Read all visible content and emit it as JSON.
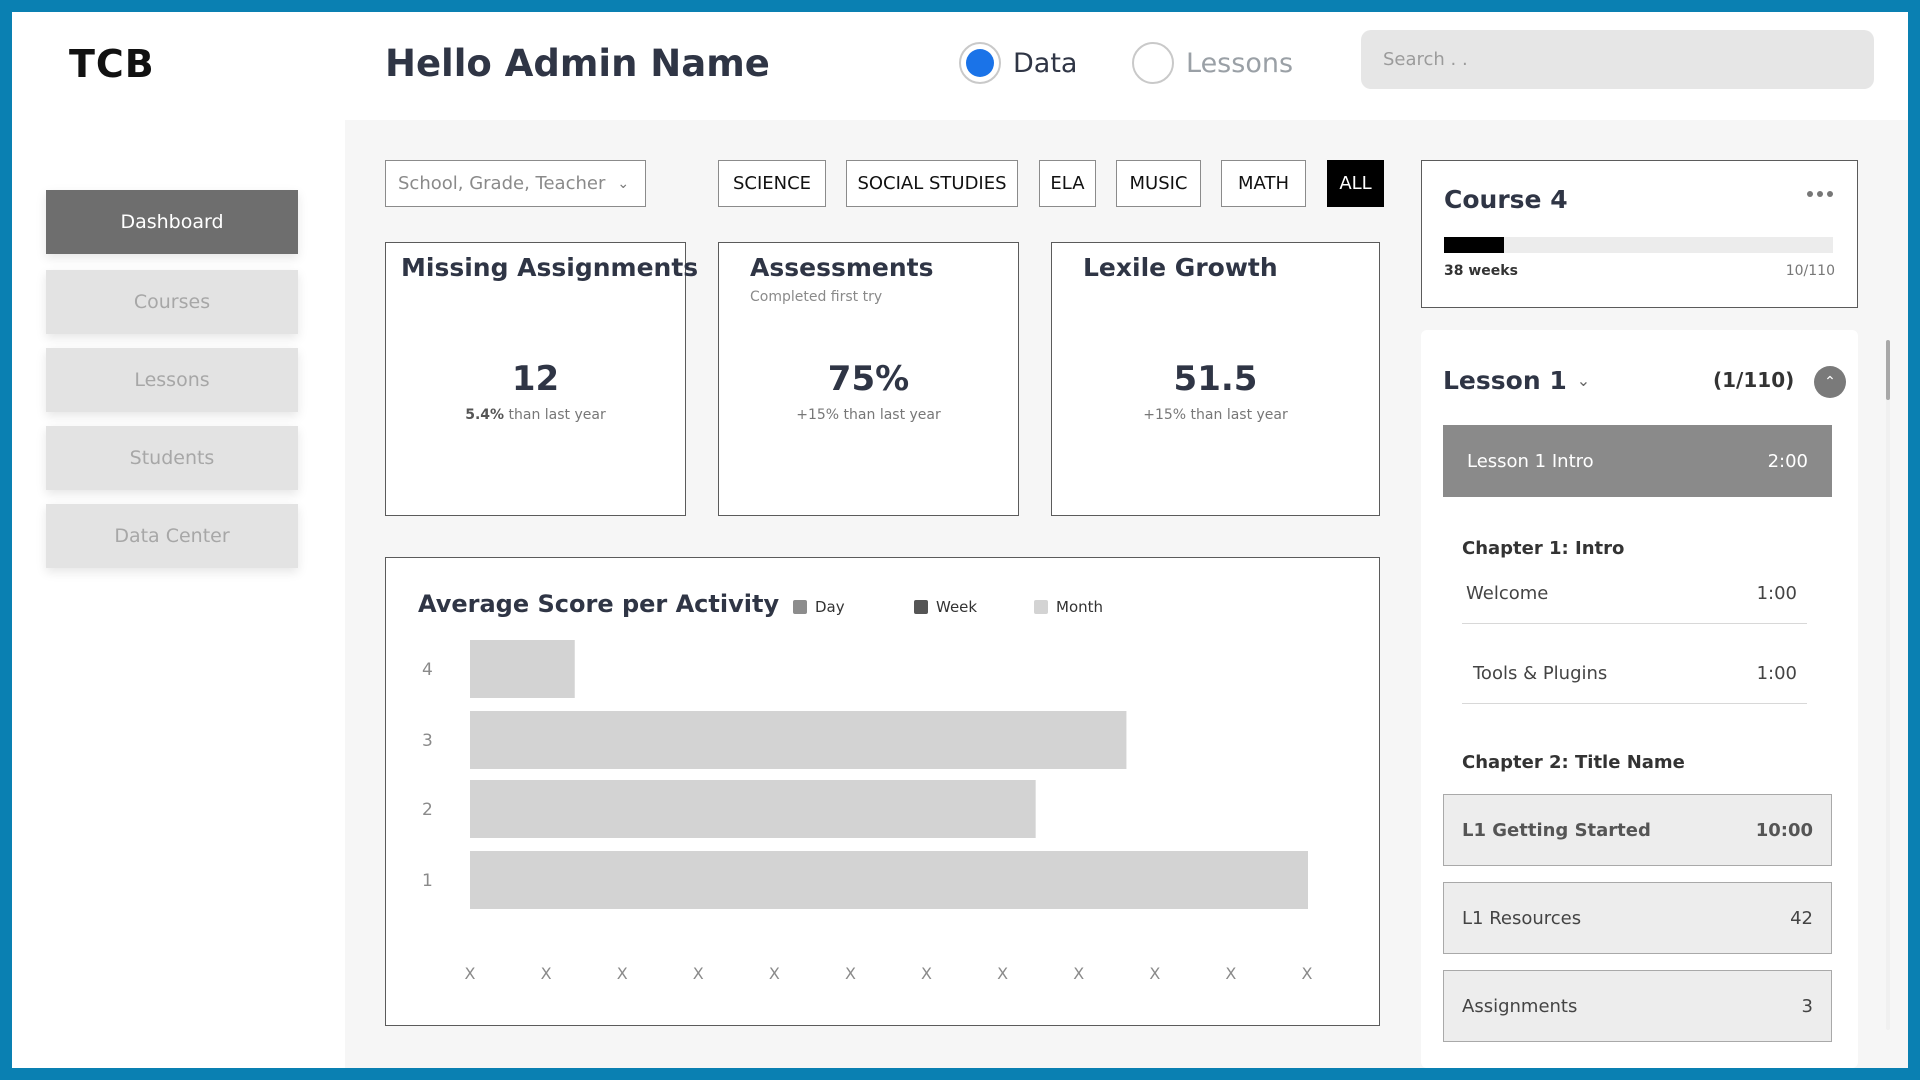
{
  "header": {
    "logo": "TCB",
    "greeting": "Hello Admin Name",
    "view_toggle": [
      {
        "label": "Data",
        "selected": true
      },
      {
        "label": "Lessons",
        "selected": false
      }
    ],
    "search_placeholder": "Search . ."
  },
  "sidebar": {
    "items": [
      {
        "label": "Dashboard",
        "active": true
      },
      {
        "label": "Courses",
        "active": false
      },
      {
        "label": "Lessons",
        "active": false
      },
      {
        "label": "Students",
        "active": false
      },
      {
        "label": "Data Center",
        "active": false
      }
    ]
  },
  "filters": {
    "select_label": "School, Grade, Teacher",
    "subjects": [
      {
        "label": "SCIENCE",
        "active": false
      },
      {
        "label": "SOCIAL STUDIES",
        "active": false
      },
      {
        "label": "ELA",
        "active": false
      },
      {
        "label": "MUSIC",
        "active": false
      },
      {
        "label": "MATH",
        "active": false
      },
      {
        "label": "ALL",
        "active": true
      }
    ]
  },
  "stats": [
    {
      "title": "Missing Assignments",
      "subtitle": "",
      "value": "12",
      "note_bold": "5.4%",
      "note": " than last year"
    },
    {
      "title": "Assessments",
      "subtitle": "Completed first try",
      "value": "75%",
      "note_bold": "",
      "note": "+15% than last year"
    },
    {
      "title": "Lexile Growth",
      "subtitle": "",
      "value": "51.5",
      "note_bold": "",
      "note": "+15% than last year"
    }
  ],
  "chart_data": {
    "type": "bar",
    "orientation": "horizontal",
    "title": "Average Score per Activity",
    "legend": [
      {
        "name": "Day",
        "color": "#8c8c8c"
      },
      {
        "name": "Week",
        "color": "#555555"
      },
      {
        "name": "Month",
        "color": "#d3d3d3"
      }
    ],
    "categories": [
      "4",
      "3",
      "2",
      "1"
    ],
    "values": [
      1.5,
      9.4,
      8.1,
      12.0
    ],
    "x_tick_labels": [
      "X",
      "X",
      "X",
      "X",
      "X",
      "X",
      "X",
      "X",
      "X",
      "X",
      "X",
      "X"
    ],
    "xlim": [
      0,
      12
    ],
    "bar_color": "#d3d3d3",
    "grid": false
  },
  "course": {
    "title": "Course 4",
    "progress": 0.155,
    "weeks": "38 weeks",
    "count": "10/110"
  },
  "lesson": {
    "title": "Lesson 1",
    "count": "(1/110)",
    "intro": {
      "label": "Lesson 1 Intro",
      "time": "2:00"
    },
    "chapter1": "Chapter 1: Intro",
    "chapter1_items": [
      {
        "label": "Welcome",
        "time": "1:00"
      },
      {
        "label": "Tools & Plugins",
        "time": "1:00"
      }
    ],
    "chapter2": "Chapter 2: Title Name",
    "chapter2_items": [
      {
        "label": "L1 Getting Started",
        "time": "10:00"
      },
      {
        "label": "L1 Resources",
        "time": "42"
      },
      {
        "label": "Assignments",
        "time": "3"
      }
    ]
  },
  "colors": {
    "frame": "#0a80b2",
    "accent": "#1a73e8",
    "active_nav": "#6e6e6e",
    "active_chip": "#000000"
  }
}
